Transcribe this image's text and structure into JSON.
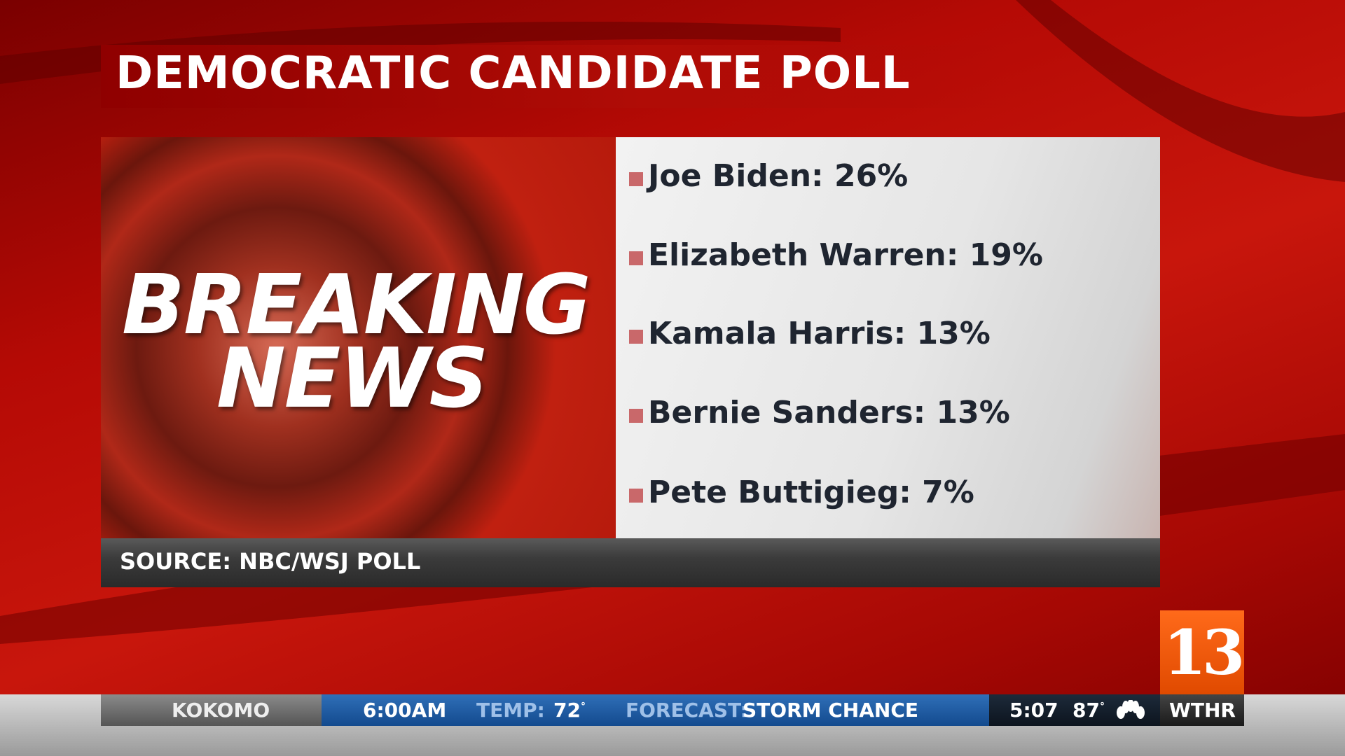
{
  "header": {
    "title": "DEMOCRATIC CANDIDATE POLL"
  },
  "banner": {
    "line1": "BREAKING",
    "line2": "NEWS"
  },
  "poll": {
    "items": [
      "Joe Biden: 26%",
      "Elizabeth Warren: 19%",
      "Kamala Harris: 13%",
      "Bernie Sanders: 13%",
      "Pete Buttigieg: 7%"
    ]
  },
  "source": "SOURCE: NBC/WSJ POLL",
  "ticker": {
    "location": "KOKOMO",
    "time": "6:00AM",
    "temp_label": "TEMP:",
    "temp_value": "72",
    "temp_unit": "°",
    "forecast_label": "FORECAST:",
    "forecast_value": "STORM CHANCE",
    "clock": "5:07",
    "current_temp": "87",
    "current_unit": "°",
    "station": "WTHR"
  },
  "logo": "13"
}
